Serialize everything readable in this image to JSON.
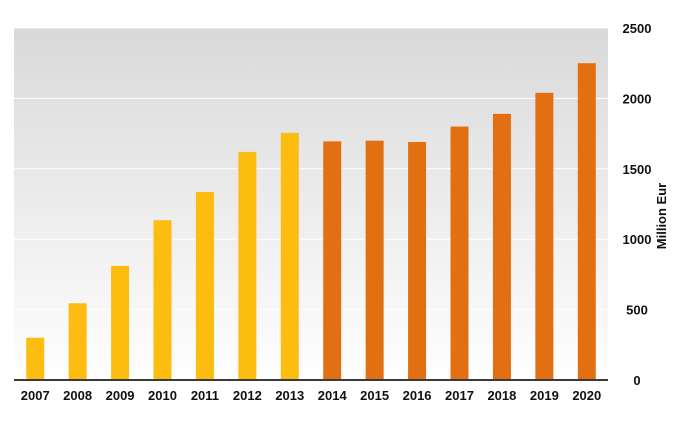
{
  "chart_data": {
    "type": "bar",
    "title": "",
    "xlabel": "",
    "ylabel": "Million Eur",
    "ylim": [
      0,
      2500
    ],
    "yticks": [
      0,
      500,
      1000,
      1500,
      2000,
      2500
    ],
    "y_axis_side": "right",
    "grid": true,
    "categories": [
      "2007",
      "2008",
      "2009",
      "2010",
      "2011",
      "2012",
      "2013",
      "2014",
      "2015",
      "2016",
      "2017",
      "2018",
      "2019",
      "2020"
    ],
    "values": [
      300,
      545,
      810,
      1135,
      1335,
      1620,
      1755,
      1695,
      1700,
      1690,
      1800,
      1890,
      2040,
      2250
    ],
    "bar_colors": [
      "#FCBD10",
      "#FCBD10",
      "#FCBD10",
      "#FCBD10",
      "#FCBD10",
      "#FCBD10",
      "#FCBD10",
      "#E26F12",
      "#E26F12",
      "#E26F12",
      "#E26F12",
      "#E26F12",
      "#E26F12",
      "#E26F12"
    ],
    "background_gradient": [
      "#d9d9d9",
      "#ffffff"
    ],
    "gridline_color": "#ffffff",
    "baseline_color": "#3a3a3a"
  }
}
